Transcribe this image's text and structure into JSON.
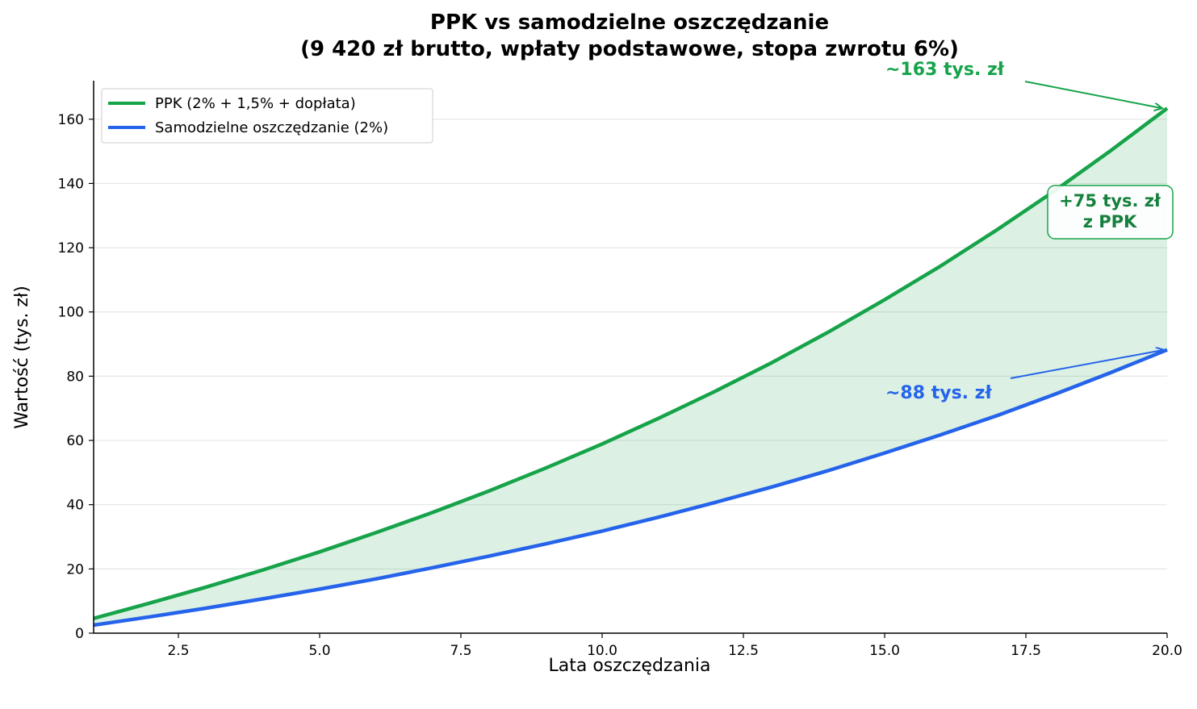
{
  "chart_data": {
    "type": "area",
    "title_line1": "PPK vs samodzielne oszczędzanie",
    "title_line2": "(9 420 zł brutto, wpłaty podstawowe, stopa zwrotu 6%)",
    "xlabel": "Lata oszczędzania",
    "ylabel": "Wartość (tys. zł)",
    "xlim": [
      1,
      20
    ],
    "ylim": [
      0,
      172
    ],
    "x_ticks": [
      2.5,
      5.0,
      7.5,
      10.0,
      12.5,
      15.0,
      17.5,
      20.0
    ],
    "x_tick_labels": [
      "2.5",
      "5.0",
      "7.5",
      "10.0",
      "12.5",
      "15.0",
      "17.5",
      "20.0"
    ],
    "y_ticks": [
      0,
      20,
      40,
      60,
      80,
      100,
      120,
      140,
      160
    ],
    "y_tick_labels": [
      "0",
      "20",
      "40",
      "60",
      "80",
      "100",
      "120",
      "140",
      "160"
    ],
    "grid": "horizontal",
    "legend_position": "top-left",
    "x": [
      1,
      2,
      3,
      4,
      5,
      6,
      7,
      8,
      9,
      10,
      11,
      12,
      13,
      14,
      15,
      16,
      17,
      18,
      19,
      20
    ],
    "series": [
      {
        "name": "PPK (2% + 1,5% + dopłata)",
        "color": "#16a34a",
        "values": [
          4.6,
          9.4,
          14.4,
          19.7,
          25.3,
          31.3,
          37.6,
          44.3,
          51.4,
          58.9,
          66.9,
          75.3,
          84.2,
          93.7,
          103.8,
          114.4,
          125.7,
          137.6,
          150.2,
          163.4
        ]
      },
      {
        "name": "Samodzielne oszczędzanie (2%)",
        "color": "#2563eb",
        "values": [
          2.5,
          5.1,
          7.8,
          10.7,
          13.7,
          16.9,
          20.4,
          24.0,
          27.8,
          31.8,
          36.1,
          40.7,
          45.5,
          50.6,
          56.1,
          61.8,
          67.8,
          74.3,
          81.1,
          88.2
        ]
      }
    ],
    "fill_between": {
      "color": "#16a34a",
      "opacity": 0.15
    },
    "annotations": [
      {
        "text": "~163 tys. zł",
        "color": "#16a34a",
        "target_x": 20,
        "target_y": 163.4
      },
      {
        "text": "~88 tys. zł",
        "color": "#2563eb",
        "target_x": 20,
        "target_y": 88.2
      },
      {
        "text_line1": "+75 tys. zł",
        "text_line2": "z PPK",
        "color": "#15803d",
        "border_color": "#16a34a"
      }
    ]
  }
}
